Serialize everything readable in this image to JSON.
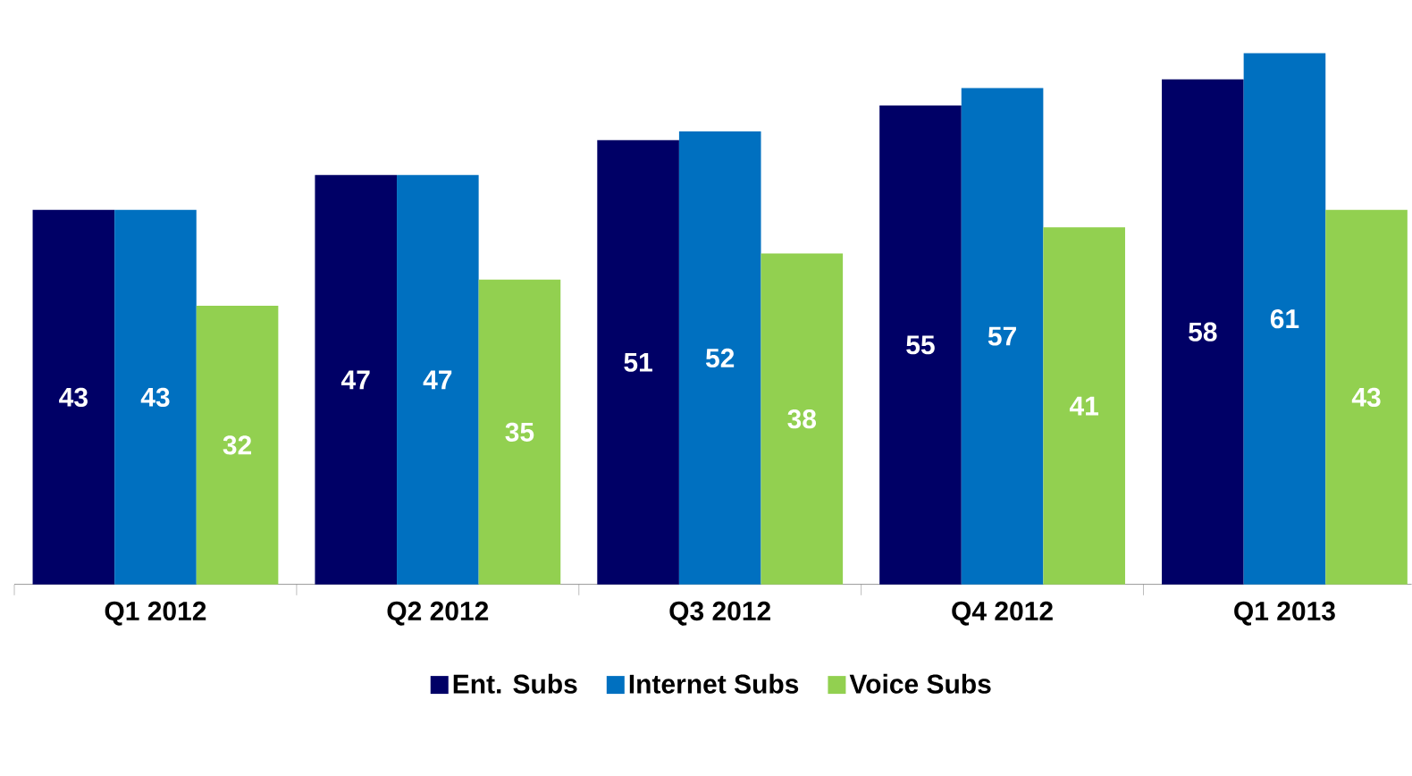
{
  "chart_data": {
    "type": "bar",
    "categories": [
      "Q1 2012",
      "Q2 2012",
      "Q3 2012",
      "Q4 2012",
      "Q1 2013"
    ],
    "series": [
      {
        "name": "Ent. Subs",
        "color": "#000066",
        "values": [
          43,
          47,
          51,
          55,
          58
        ]
      },
      {
        "name": "Internet Subs",
        "color": "#0070c0",
        "values": [
          43,
          47,
          52,
          57,
          61
        ]
      },
      {
        "name": "Voice Subs",
        "color": "#92d050",
        "values": [
          32,
          35,
          38,
          41,
          43
        ]
      }
    ],
    "data_labels": true,
    "legend": "bottom"
  }
}
